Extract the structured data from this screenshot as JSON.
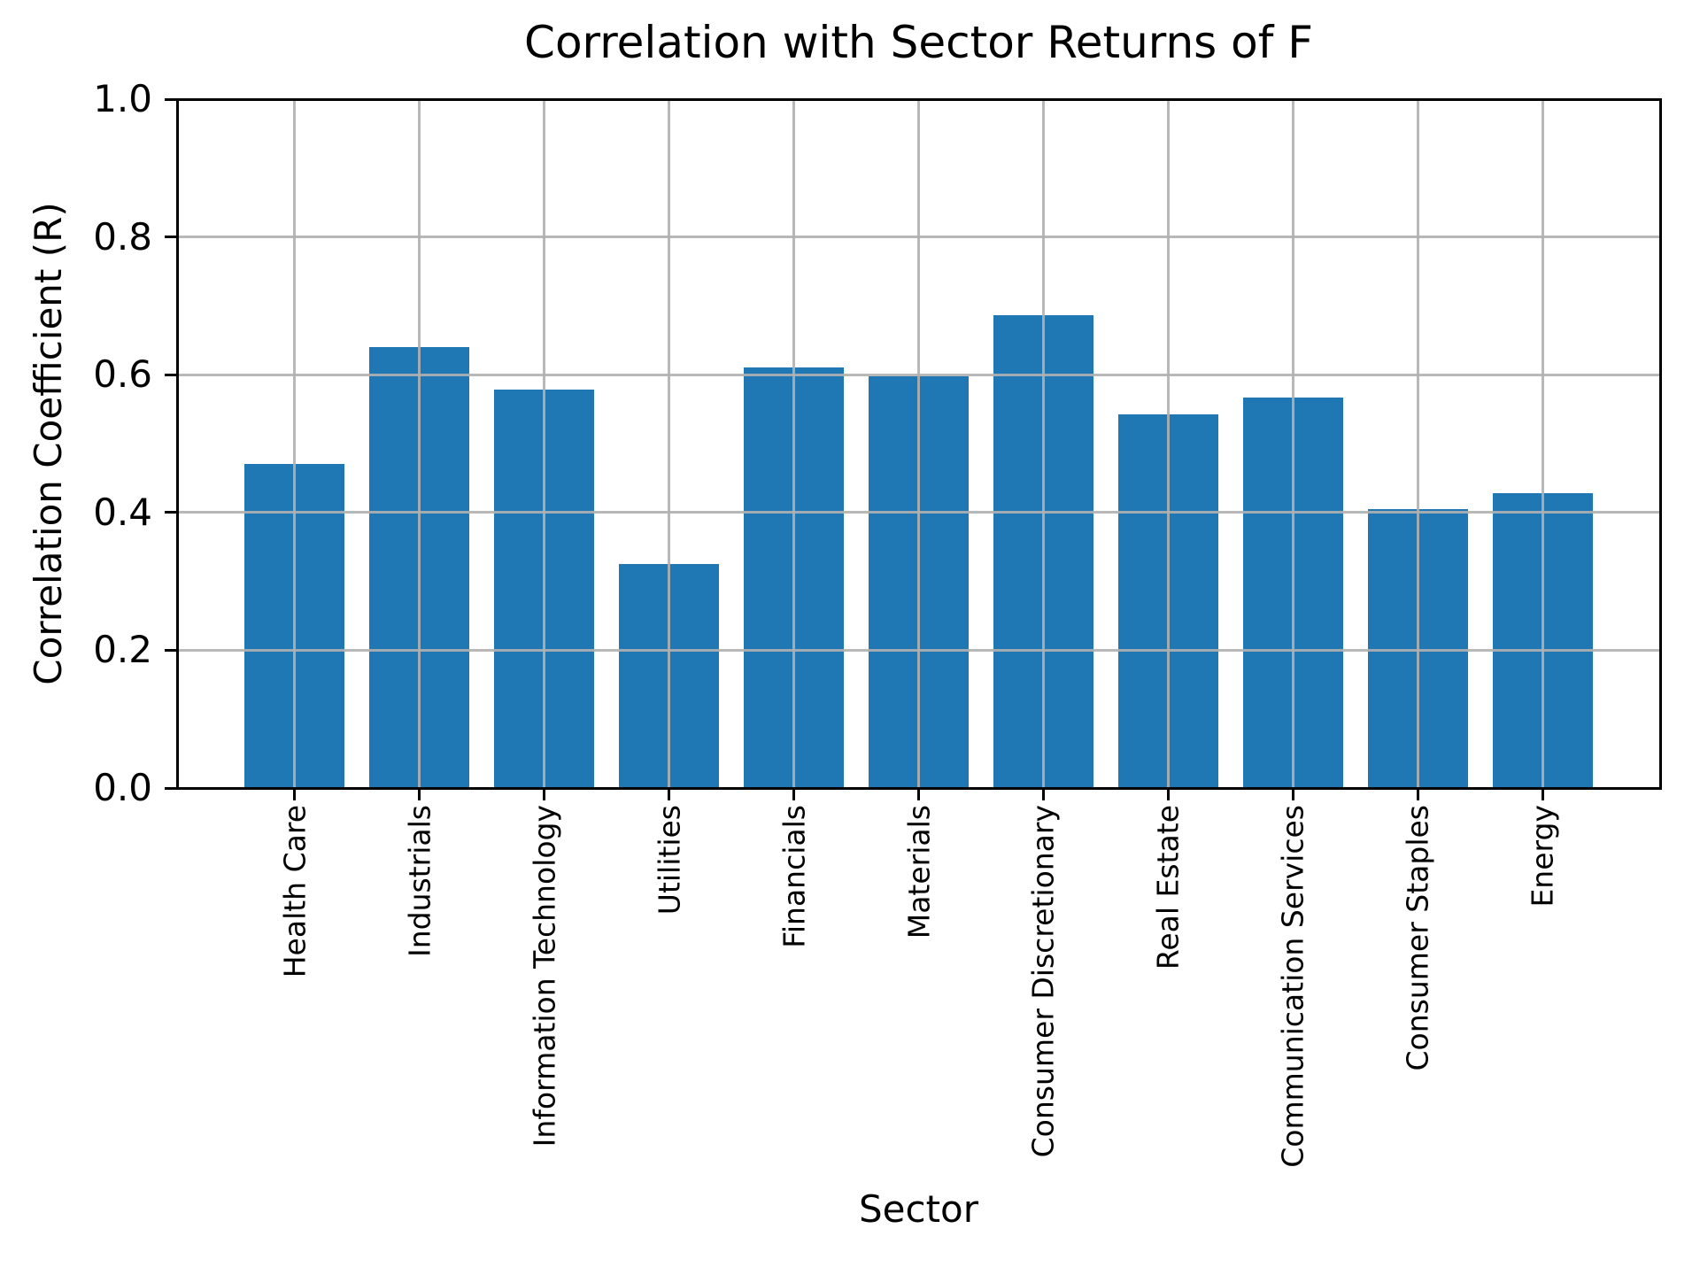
{
  "chart_data": {
    "type": "bar",
    "title": "Correlation with Sector Returns of F",
    "xlabel": "Sector",
    "ylabel": "Correlation Coefficient (R)",
    "categories": [
      "Health Care",
      "Industrials",
      "Information Technology",
      "Utilities",
      "Financials",
      "Materials",
      "Consumer Discretionary",
      "Real Estate",
      "Communication Services",
      "Consumer Staples",
      "Energy"
    ],
    "values": [
      0.47,
      0.64,
      0.578,
      0.325,
      0.61,
      0.598,
      0.687,
      0.543,
      0.567,
      0.405,
      0.428
    ],
    "ylim": [
      0.0,
      1.0
    ],
    "ytick_labels": [
      "0.0",
      "0.2",
      "0.4",
      "0.6",
      "0.8",
      "1.0"
    ],
    "grid": true,
    "grid_above_bars": true,
    "legend": "none",
    "bar_color": "#1f77b4",
    "grid_color": "#b0b0b0",
    "axis_color": "#000000",
    "background_color": "#ffffff"
  }
}
